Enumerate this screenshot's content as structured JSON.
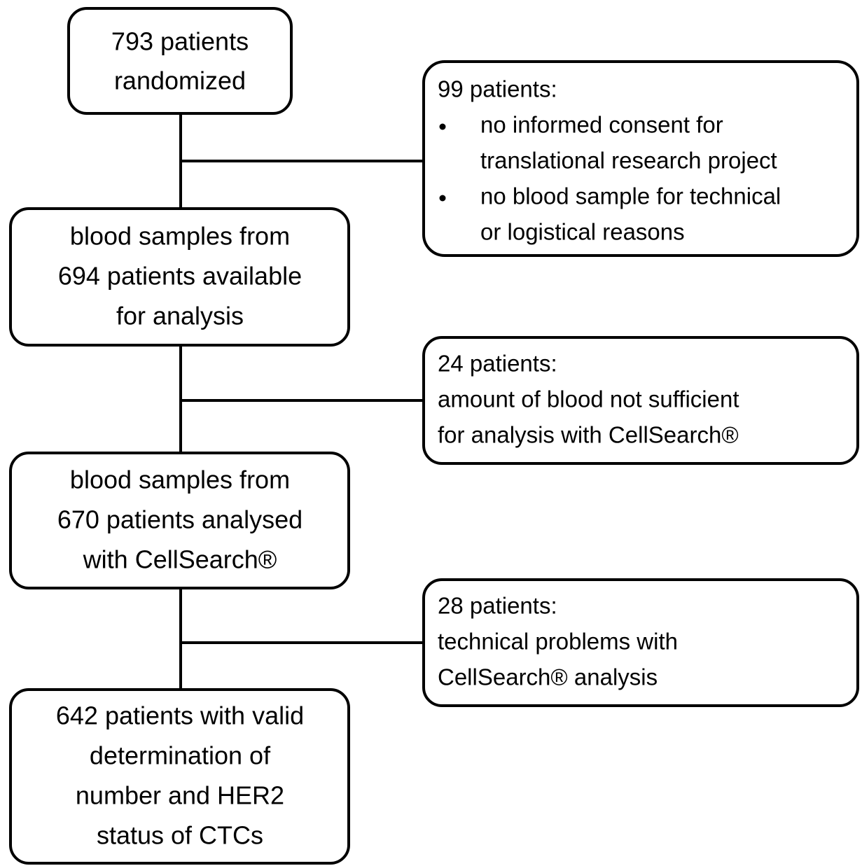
{
  "nodes": [
    {
      "lines": [
        "793 patients",
        "randomized"
      ]
    },
    {
      "lines": [
        "blood samples from",
        "694 patients available",
        "for analysis"
      ]
    },
    {
      "lines": [
        "blood samples from",
        "670 patients analysed",
        "with CellSearch®"
      ]
    },
    {
      "lines": [
        "642 patients with valid",
        "determination of",
        "number and HER2",
        "status of CTCs"
      ]
    }
  ],
  "exclusions": [
    {
      "heading": "99 patients:",
      "items": [
        [
          "no informed consent for",
          "translational research project"
        ],
        [
          "no blood sample for technical",
          "or logistical reasons"
        ]
      ]
    },
    {
      "heading": "24 patients:",
      "lines": [
        "amount of blood not sufficient",
        "for analysis with CellSearch®"
      ]
    },
    {
      "heading": "28 patients:",
      "lines": [
        "technical problems with",
        "CellSearch® analysis"
      ]
    }
  ]
}
